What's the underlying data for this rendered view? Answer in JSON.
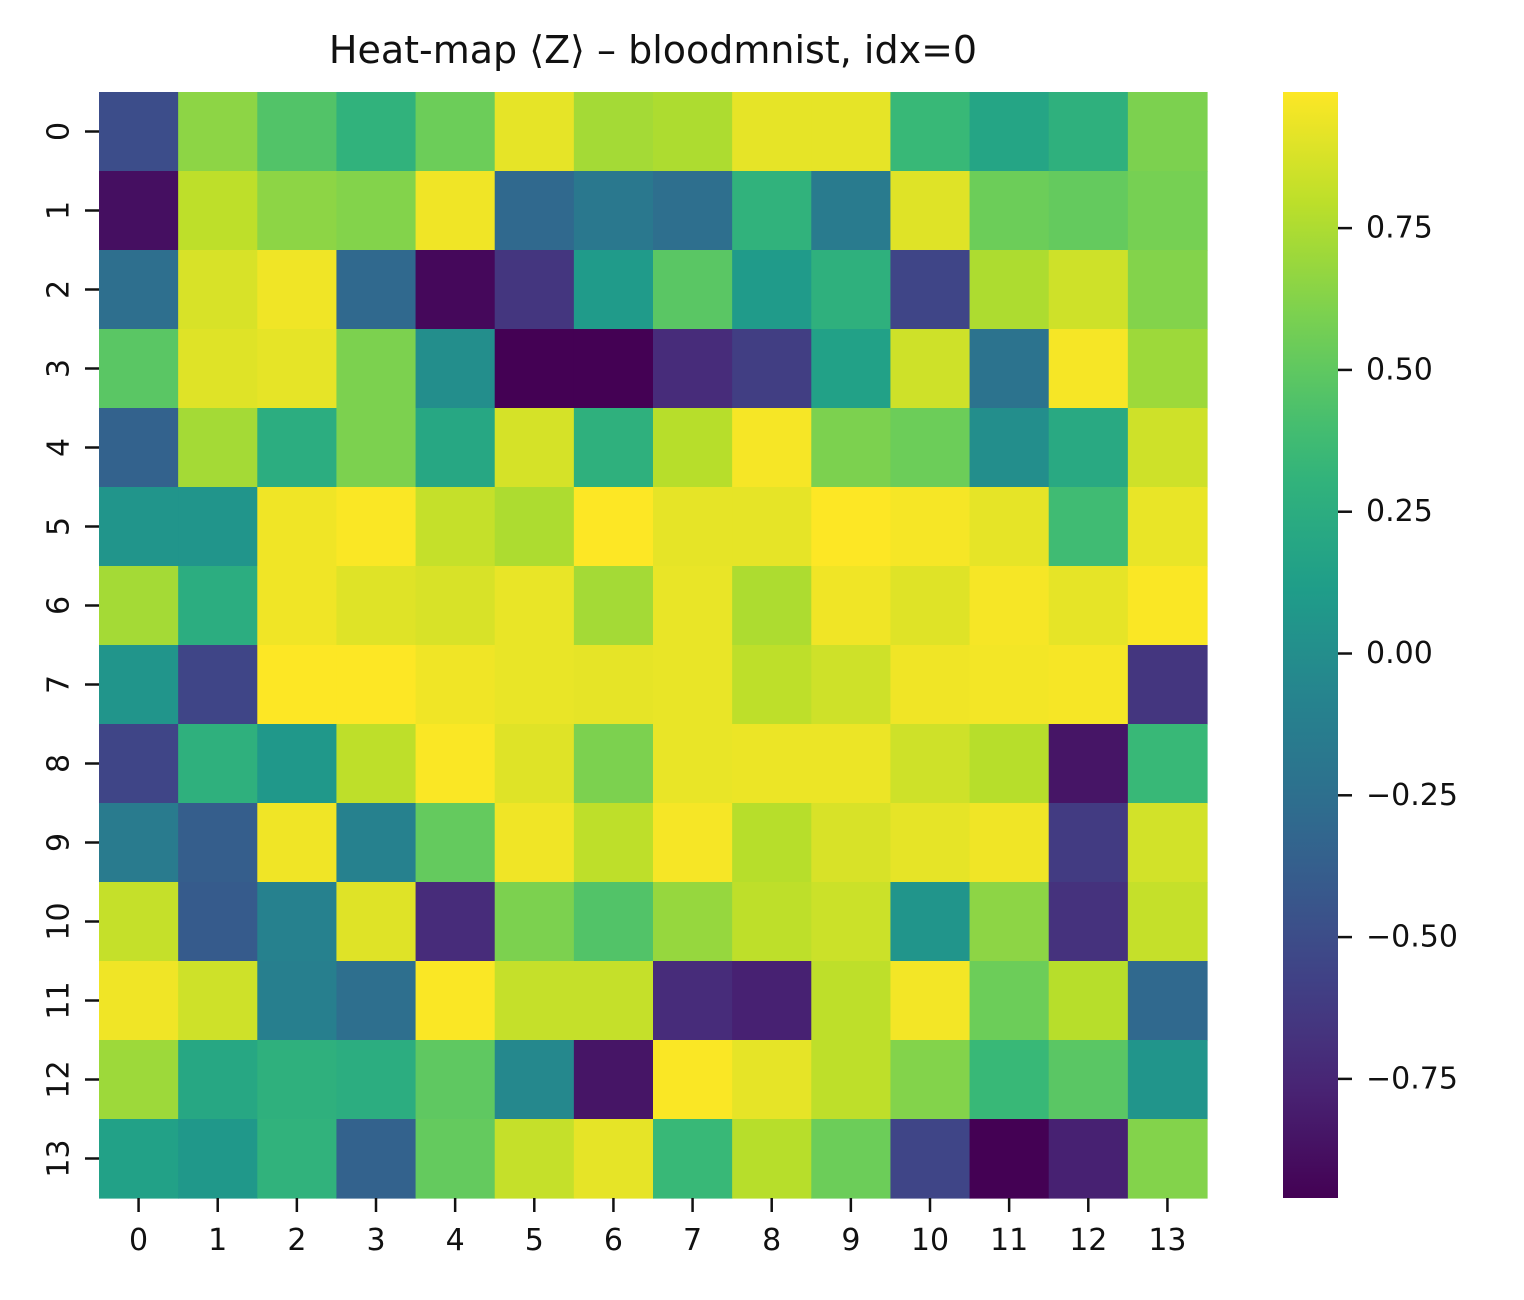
{
  "chart_data": {
    "type": "heatmap",
    "title": "Heat-map ⟨Z⟩ – bloodmnist, idx=0",
    "xlabel": "",
    "ylabel": "",
    "x_tick_labels": [
      "0",
      "1",
      "2",
      "3",
      "4",
      "5",
      "6",
      "7",
      "8",
      "9",
      "10",
      "11",
      "12",
      "13"
    ],
    "y_tick_labels": [
      "0",
      "1",
      "2",
      "3",
      "4",
      "5",
      "6",
      "7",
      "8",
      "9",
      "10",
      "11",
      "12",
      "13"
    ],
    "colormap": "viridis",
    "vmin": -0.96,
    "vmax": 0.99,
    "colorbar_ticks": [
      {
        "value": 0.75,
        "label": "0.75"
      },
      {
        "value": 0.5,
        "label": "0.50"
      },
      {
        "value": 0.25,
        "label": "0.25"
      },
      {
        "value": 0.0,
        "label": "0.00"
      },
      {
        "value": -0.25,
        "label": "−0.25"
      },
      {
        "value": -0.5,
        "label": "−0.50"
      },
      {
        "value": -0.75,
        "label": "−0.75"
      }
    ],
    "values": [
      [
        -0.5,
        0.65,
        0.45,
        0.3,
        0.55,
        0.92,
        0.72,
        0.75,
        0.92,
        0.92,
        0.35,
        0.18,
        0.28,
        0.6
      ],
      [
        -0.88,
        0.8,
        0.65,
        0.62,
        0.95,
        -0.3,
        -0.18,
        -0.25,
        0.3,
        -0.15,
        0.9,
        0.55,
        0.52,
        0.58
      ],
      [
        -0.25,
        0.88,
        0.95,
        -0.3,
        -0.92,
        -0.65,
        0.1,
        0.48,
        0.1,
        0.28,
        -0.55,
        0.75,
        0.85,
        0.62
      ],
      [
        0.48,
        0.9,
        0.92,
        0.6,
        0.0,
        -0.96,
        -0.96,
        -0.72,
        -0.6,
        0.15,
        0.85,
        -0.22,
        0.97,
        0.7
      ],
      [
        -0.35,
        0.72,
        0.25,
        0.6,
        0.2,
        0.87,
        0.28,
        0.78,
        0.97,
        0.6,
        0.55,
        0.0,
        0.22,
        0.85
      ],
      [
        0.05,
        0.05,
        0.95,
        0.98,
        0.82,
        0.75,
        0.99,
        0.92,
        0.92,
        0.99,
        0.97,
        0.92,
        0.38,
        0.93
      ],
      [
        0.72,
        0.25,
        0.95,
        0.9,
        0.88,
        0.93,
        0.72,
        0.93,
        0.75,
        0.95,
        0.9,
        0.97,
        0.92,
        0.98
      ],
      [
        0.05,
        -0.55,
        0.99,
        0.99,
        0.95,
        0.93,
        0.92,
        0.93,
        0.8,
        0.85,
        0.95,
        0.96,
        0.97,
        -0.65
      ],
      [
        -0.55,
        0.28,
        0.08,
        0.8,
        0.98,
        0.9,
        0.6,
        0.93,
        0.94,
        0.94,
        0.85,
        0.78,
        -0.85,
        0.35
      ],
      [
        -0.15,
        -0.38,
        0.95,
        -0.1,
        0.52,
        0.95,
        0.8,
        0.97,
        0.78,
        0.88,
        0.92,
        0.95,
        -0.62,
        0.86
      ],
      [
        0.82,
        -0.4,
        -0.1,
        0.9,
        -0.72,
        0.6,
        0.45,
        0.68,
        0.8,
        0.84,
        0.05,
        0.65,
        -0.68,
        0.82
      ],
      [
        0.95,
        0.85,
        -0.12,
        -0.25,
        0.98,
        0.82,
        0.82,
        -0.72,
        -0.78,
        0.8,
        0.96,
        0.55,
        0.78,
        -0.3
      ],
      [
        0.7,
        0.2,
        0.28,
        0.25,
        0.5,
        -0.05,
        -0.85,
        0.98,
        0.92,
        0.8,
        0.62,
        0.35,
        0.48,
        0.05
      ],
      [
        0.15,
        0.08,
        0.3,
        -0.35,
        0.52,
        0.82,
        0.92,
        0.35,
        0.78,
        0.55,
        -0.55,
        -0.96,
        -0.78,
        0.62
      ]
    ]
  }
}
